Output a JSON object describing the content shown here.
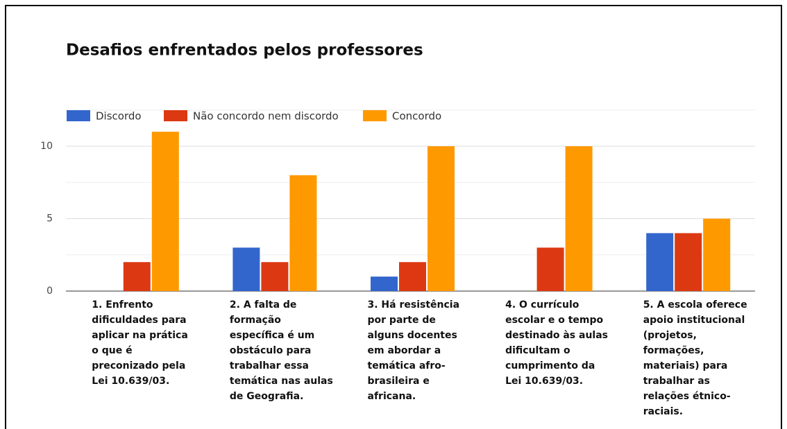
{
  "chart_data": {
    "type": "bar",
    "title": "Desafios enfrentados pelos professores",
    "categories": [
      "1. Enfrento dificuldades para aplicar na prática o que é preconizado pela Lei 10.639/03.",
      "2. A falta de formação específica é um obstáculo para trabalhar essa temática nas aulas de Geografia.",
      "3. Há resistência por parte de alguns docentes em abordar a temática afro-brasileira e africana.",
      "4. O currículo escolar e o tempo destinado às aulas dificultam o cumprimento da Lei 10.639/03.",
      "5. A escola oferece apoio institucional (projetos, formações, materiais) para trabalhar as relações étnico-raciais."
    ],
    "series": [
      {
        "name": "Discordo",
        "color": "#3366cc",
        "values": [
          0,
          3,
          1,
          0,
          4
        ]
      },
      {
        "name": "Não concordo nem discordo",
        "color": "#dc3912",
        "values": [
          2,
          2,
          2,
          3,
          4
        ]
      },
      {
        "name": "Concordo",
        "color": "#ff9900",
        "values": [
          11,
          8,
          10,
          10,
          5
        ]
      }
    ],
    "ylim": [
      0,
      12.5
    ],
    "yticks": [
      0,
      5,
      10
    ],
    "minor_yticks": [
      2.5,
      7.5,
      12.5
    ],
    "grid": true,
    "legend": "top"
  }
}
